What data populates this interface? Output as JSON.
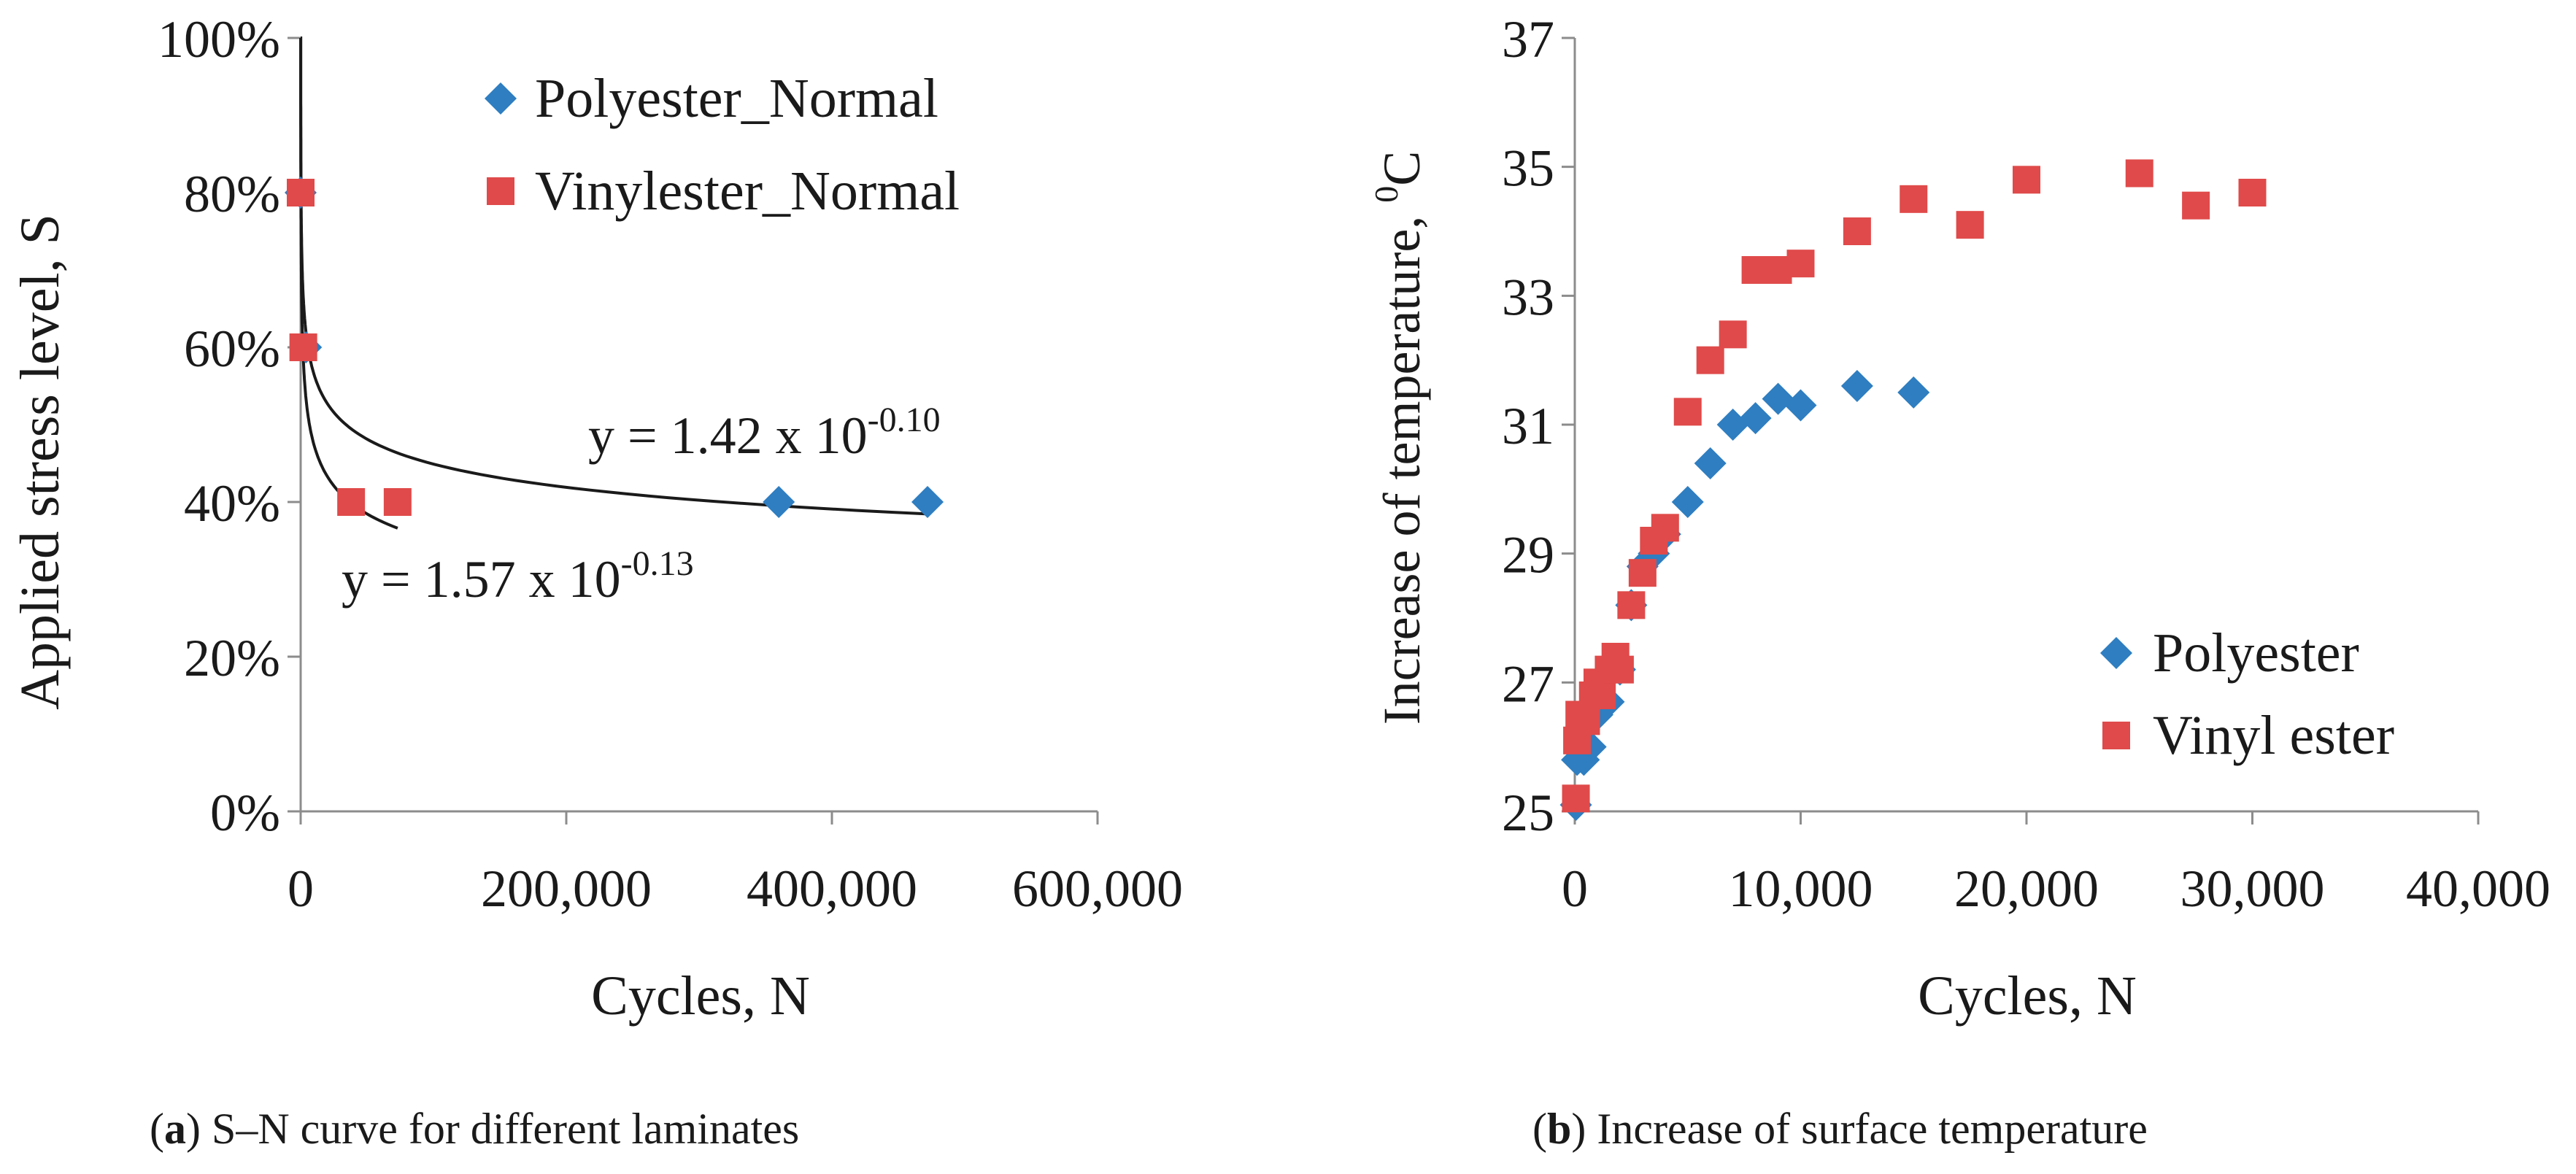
{
  "colors": {
    "polyester": "#2E7EC1",
    "vinylester": "#E04A4A",
    "axis": "#8c8c8c",
    "curve": "#1a1a1a",
    "text": "#1a1a1a"
  },
  "chart_data": [
    {
      "id": "a",
      "type": "scatter",
      "xlabel": "Cycles, N",
      "ylabel": "Applied stress level, S",
      "xlim": [
        0,
        600000
      ],
      "ylim": [
        0,
        1
      ],
      "x_ticks": [
        0,
        200000,
        400000,
        600000
      ],
      "x_tick_labels": [
        "0",
        "200,000",
        "400,000",
        "600,000"
      ],
      "y_ticks": [
        0,
        0.2,
        0.4,
        0.6,
        0.8,
        1.0
      ],
      "y_tick_labels": [
        "0%",
        "20%",
        "40%",
        "60%",
        "80%",
        "100%"
      ],
      "legend_position": "top-right",
      "series": [
        {
          "name": "Polyester_Normal",
          "marker": "diamond",
          "points": [
            [
              1,
              0.8
            ],
            [
              4000,
              0.6
            ],
            [
              360000,
              0.4
            ],
            [
              472000,
              0.4
            ]
          ]
        },
        {
          "name": "Vinylester_Normal",
          "marker": "square",
          "points": [
            [
              1,
              0.8
            ],
            [
              2000,
              0.6
            ],
            [
              38000,
              0.4
            ],
            [
              73000,
              0.4
            ]
          ]
        }
      ],
      "trendlines": [
        {
          "label_prefix": "y = 1.42 x 10",
          "label_exp": "-0.10",
          "a": 1.42,
          "b": -0.1,
          "x_range": [
            1,
            472000
          ]
        },
        {
          "label_prefix": "y = 1.57 x 10",
          "label_exp": "-0.13",
          "a": 1.57,
          "b": -0.13,
          "x_range": [
            1,
            73000
          ]
        }
      ],
      "caption_letter": "a",
      "caption_open": "(",
      "caption_close": ")",
      "caption_text": " S–N curve for different laminates"
    },
    {
      "id": "b",
      "type": "scatter",
      "xlabel": "Cycles, N",
      "ylabel_main": "Increase of temperature, ",
      "ylabel_sup": "0",
      "ylabel_unit": "C",
      "xlim": [
        0,
        40000
      ],
      "ylim": [
        25,
        37
      ],
      "x_ticks": [
        0,
        10000,
        20000,
        30000,
        40000
      ],
      "x_tick_labels": [
        "0",
        "10,000",
        "20,000",
        "30,000",
        "40,000"
      ],
      "y_ticks": [
        25,
        27,
        29,
        31,
        33,
        35,
        37
      ],
      "y_tick_labels": [
        "25",
        "27",
        "29",
        "31",
        "33",
        "35",
        "37"
      ],
      "legend_position": "bottom-right",
      "series": [
        {
          "name": "Polyester",
          "marker": "diamond",
          "points": [
            [
              50,
              25.1
            ],
            [
              100,
              25.8
            ],
            [
              400,
              25.8
            ],
            [
              700,
              26.0
            ],
            [
              1000,
              26.5
            ],
            [
              1500,
              26.7
            ],
            [
              2000,
              27.2
            ],
            [
              2500,
              28.2
            ],
            [
              3000,
              28.8
            ],
            [
              3500,
              29.0
            ],
            [
              4000,
              29.3
            ],
            [
              5000,
              29.8
            ],
            [
              6000,
              30.4
            ],
            [
              7000,
              31.0
            ],
            [
              8000,
              31.1
            ],
            [
              9000,
              31.4
            ],
            [
              10000,
              31.3
            ],
            [
              12500,
              31.6
            ],
            [
              15000,
              31.5
            ]
          ]
        },
        {
          "name": "Vinyl ester",
          "marker": "square",
          "points": [
            [
              50,
              25.2
            ],
            [
              100,
              26.1
            ],
            [
              200,
              26.5
            ],
            [
              500,
              26.4
            ],
            [
              800,
              26.8
            ],
            [
              1000,
              27.0
            ],
            [
              1200,
              26.8
            ],
            [
              1500,
              27.2
            ],
            [
              1800,
              27.4
            ],
            [
              2000,
              27.2
            ],
            [
              2500,
              28.2
            ],
            [
              3000,
              28.7
            ],
            [
              3500,
              29.2
            ],
            [
              4000,
              29.4
            ],
            [
              5000,
              31.2
            ],
            [
              6000,
              32.0
            ],
            [
              7000,
              32.4
            ],
            [
              8000,
              33.4
            ],
            [
              9000,
              33.4
            ],
            [
              10000,
              33.5
            ],
            [
              12500,
              34.0
            ],
            [
              15000,
              34.5
            ],
            [
              17500,
              34.1
            ],
            [
              20000,
              34.8
            ],
            [
              25000,
              34.9
            ],
            [
              27500,
              34.4
            ],
            [
              30000,
              34.6
            ]
          ]
        }
      ],
      "caption_letter": "b",
      "caption_open": "(",
      "caption_close": ")",
      "caption_text": " Increase of surface temperature"
    }
  ]
}
